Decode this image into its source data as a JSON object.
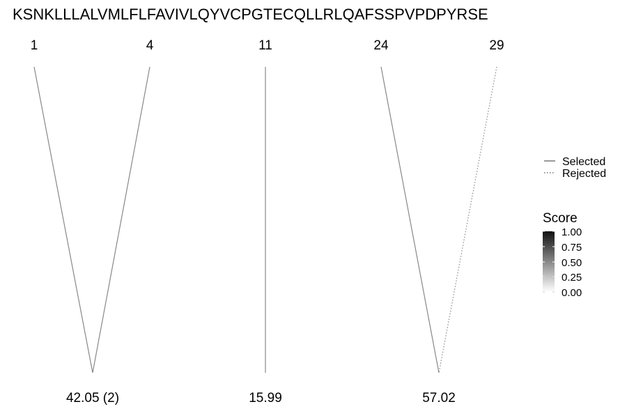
{
  "sequence": "KSNKLLLALVMLFLFAVIVLQYVCPGTECQLLRLQAFSSPVPDPYRSE",
  "positions": [
    "1",
    "4",
    "11",
    "24",
    "29"
  ],
  "fragment_scores": [
    "42.05 (2)",
    "15.99",
    "57.02"
  ],
  "links": [
    {
      "from_position": "1",
      "to_score": "42.05 (2)",
      "status": "selected"
    },
    {
      "from_position": "4",
      "to_score": "42.05 (2)",
      "status": "selected"
    },
    {
      "from_position": "11",
      "to_score": "15.99",
      "status": "selected"
    },
    {
      "from_position": "24",
      "to_score": "57.02",
      "status": "selected"
    },
    {
      "from_position": "29",
      "to_score": "57.02",
      "status": "rejected"
    }
  ],
  "legend": {
    "items": [
      {
        "label": "Selected",
        "line_style": "solid"
      },
      {
        "label": "Rejected",
        "line_style": "dotted"
      }
    ]
  },
  "score_scale": {
    "title": "Score",
    "ticks": [
      "1.00",
      "0.75",
      "0.50",
      "0.25",
      "0.00"
    ],
    "range": [
      0,
      1
    ],
    "color_high": "#111111",
    "color_low": "#ffffff"
  },
  "colors": {
    "link_line": "#888888",
    "text": "#000000"
  }
}
